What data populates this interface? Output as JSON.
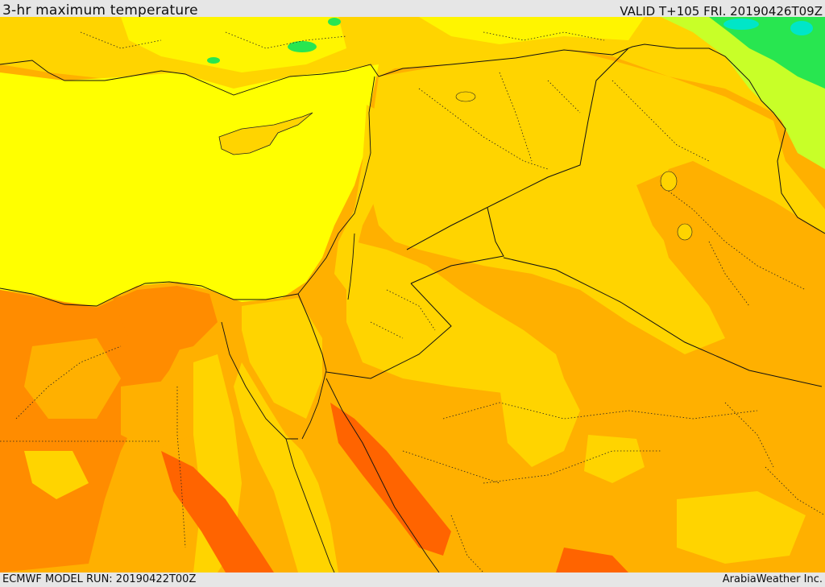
{
  "header": {
    "title": "3-hr maximum temperature",
    "valid": "VALID T+105 FRI. 20190426T09Z"
  },
  "footer": {
    "model_run": "ECMWF MODEL RUN: 20190422T00Z",
    "credit": "ArabiaWeather Inc."
  },
  "palette": {
    "sea": "#ffff00",
    "light_orange": "#ffd400",
    "orange": "#ffb000",
    "dark_orange": "#ff8c00",
    "red_orange": "#ff6400",
    "light_green": "#c8ff28",
    "green": "#28e650",
    "cyan": "#00e6c8",
    "land_yellow": "#fff500"
  }
}
